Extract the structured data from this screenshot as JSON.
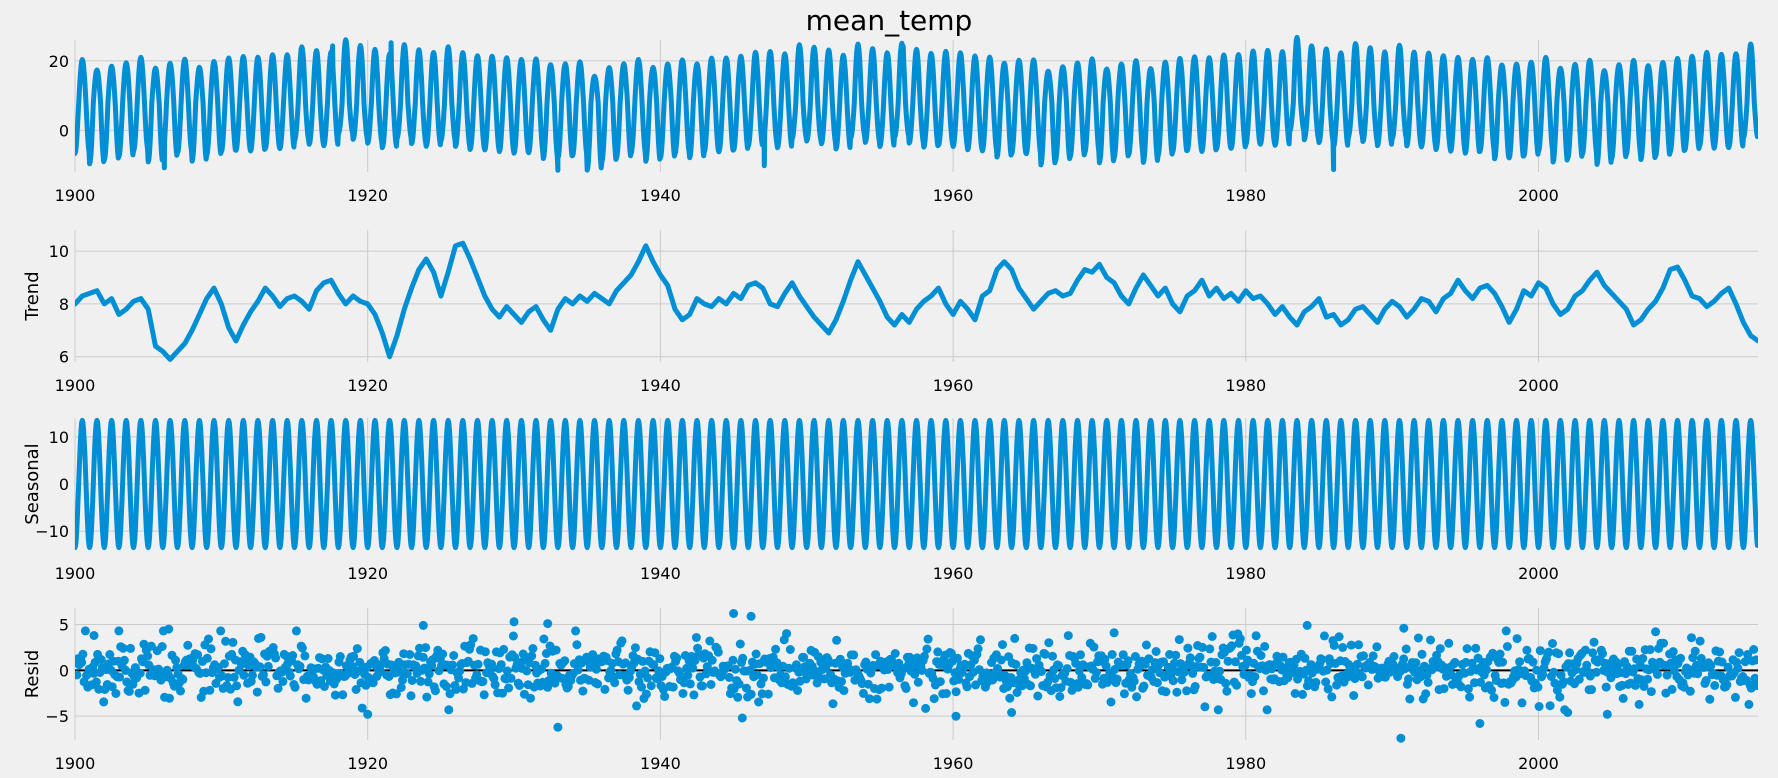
{
  "chart_data": {
    "type": "line",
    "title": "mean_temp",
    "x_ticks": [
      "1900",
      "1920",
      "1940",
      "1960",
      "1980",
      "2000"
    ],
    "xlim": [
      1900,
      2015
    ],
    "series_color": "#008fd5",
    "baseline_color": "#000000",
    "background": "#f0f0f0",
    "grid": true,
    "panels": [
      {
        "name": "observed",
        "kind": "line",
        "ylabel": "",
        "ylim": [
          -12,
          26
        ],
        "y_ticks": [
          0,
          20
        ],
        "model": {
          "mean": 7.8,
          "amplitude": 13.5,
          "period_years": 1,
          "noise": 2.2
        },
        "extremes": [
          {
            "x": 1921.6,
            "y": 25.2
          },
          {
            "x": 1917.6,
            "y": 24.3
          },
          {
            "x": 1906.1,
            "y": -10.8
          },
          {
            "x": 1933.0,
            "y": -11.5
          },
          {
            "x": 1947.1,
            "y": -10.2
          },
          {
            "x": 1986.0,
            "y": -11.3
          },
          {
            "x": 1956.6,
            "y": 24.0
          }
        ]
      },
      {
        "name": "trend",
        "kind": "line",
        "ylabel": "Trend",
        "ylim": [
          5.8,
          10.8
        ],
        "y_ticks": [
          6,
          8,
          10
        ],
        "points": [
          [
            1900,
            8.0
          ],
          [
            1900.5,
            8.3
          ],
          [
            1901,
            8.4
          ],
          [
            1901.5,
            8.5
          ],
          [
            1902,
            8.0
          ],
          [
            1902.5,
            8.2
          ],
          [
            1903,
            7.6
          ],
          [
            1903.5,
            7.8
          ],
          [
            1904,
            8.1
          ],
          [
            1904.5,
            8.2
          ],
          [
            1905,
            7.8
          ],
          [
            1905.5,
            6.4
          ],
          [
            1906,
            6.2
          ],
          [
            1906.5,
            5.9
          ],
          [
            1907,
            6.2
          ],
          [
            1907.5,
            6.5
          ],
          [
            1908,
            7.0
          ],
          [
            1908.5,
            7.6
          ],
          [
            1909,
            8.2
          ],
          [
            1909.5,
            8.6
          ],
          [
            1910,
            8.0
          ],
          [
            1910.5,
            7.1
          ],
          [
            1911,
            6.6
          ],
          [
            1911.5,
            7.2
          ],
          [
            1912,
            7.7
          ],
          [
            1912.5,
            8.1
          ],
          [
            1913,
            8.6
          ],
          [
            1913.5,
            8.3
          ],
          [
            1914,
            7.9
          ],
          [
            1914.5,
            8.2
          ],
          [
            1915,
            8.3
          ],
          [
            1915.5,
            8.1
          ],
          [
            1916,
            7.8
          ],
          [
            1916.5,
            8.5
          ],
          [
            1917,
            8.8
          ],
          [
            1917.5,
            8.9
          ],
          [
            1918,
            8.4
          ],
          [
            1918.5,
            8.0
          ],
          [
            1919,
            8.3
          ],
          [
            1919.5,
            8.1
          ],
          [
            1920,
            8.0
          ],
          [
            1920.5,
            7.6
          ],
          [
            1921,
            6.9
          ],
          [
            1921.5,
            6.0
          ],
          [
            1922,
            6.8
          ],
          [
            1922.5,
            7.8
          ],
          [
            1923,
            8.6
          ],
          [
            1923.5,
            9.3
          ],
          [
            1924,
            9.7
          ],
          [
            1924.5,
            9.2
          ],
          [
            1925,
            8.3
          ],
          [
            1925.5,
            9.2
          ],
          [
            1926,
            10.2
          ],
          [
            1926.5,
            10.3
          ],
          [
            1927,
            9.7
          ],
          [
            1927.5,
            9.0
          ],
          [
            1928,
            8.3
          ],
          [
            1928.5,
            7.8
          ],
          [
            1929,
            7.5
          ],
          [
            1929.5,
            7.9
          ],
          [
            1930,
            7.6
          ],
          [
            1930.5,
            7.3
          ],
          [
            1931,
            7.7
          ],
          [
            1931.5,
            7.9
          ],
          [
            1932,
            7.4
          ],
          [
            1932.5,
            7.0
          ],
          [
            1933,
            7.8
          ],
          [
            1933.5,
            8.2
          ],
          [
            1934,
            8.0
          ],
          [
            1934.5,
            8.3
          ],
          [
            1935,
            8.1
          ],
          [
            1935.5,
            8.4
          ],
          [
            1936,
            8.2
          ],
          [
            1936.5,
            8.0
          ],
          [
            1937,
            8.5
          ],
          [
            1937.5,
            8.8
          ],
          [
            1938,
            9.1
          ],
          [
            1938.5,
            9.6
          ],
          [
            1939,
            10.2
          ],
          [
            1939.5,
            9.6
          ],
          [
            1940,
            9.1
          ],
          [
            1940.5,
            8.7
          ],
          [
            1941,
            7.8
          ],
          [
            1941.5,
            7.4
          ],
          [
            1942,
            7.6
          ],
          [
            1942.5,
            8.2
          ],
          [
            1943,
            8.0
          ],
          [
            1943.5,
            7.9
          ],
          [
            1944,
            8.2
          ],
          [
            1944.5,
            8.0
          ],
          [
            1945,
            8.4
          ],
          [
            1945.5,
            8.2
          ],
          [
            1946,
            8.7
          ],
          [
            1946.5,
            8.8
          ],
          [
            1947,
            8.6
          ],
          [
            1947.5,
            8.0
          ],
          [
            1948,
            7.9
          ],
          [
            1948.5,
            8.4
          ],
          [
            1949,
            8.8
          ],
          [
            1949.5,
            8.3
          ],
          [
            1950,
            7.9
          ],
          [
            1950.5,
            7.5
          ],
          [
            1951,
            7.2
          ],
          [
            1951.5,
            6.9
          ],
          [
            1952,
            7.4
          ],
          [
            1952.5,
            8.1
          ],
          [
            1953,
            8.9
          ],
          [
            1953.5,
            9.6
          ],
          [
            1954,
            9.1
          ],
          [
            1954.5,
            8.6
          ],
          [
            1955,
            8.1
          ],
          [
            1955.5,
            7.5
          ],
          [
            1956,
            7.2
          ],
          [
            1956.5,
            7.6
          ],
          [
            1957,
            7.3
          ],
          [
            1957.5,
            7.8
          ],
          [
            1958,
            8.1
          ],
          [
            1958.5,
            8.3
          ],
          [
            1959,
            8.6
          ],
          [
            1959.5,
            8.0
          ],
          [
            1960,
            7.6
          ],
          [
            1960.5,
            8.1
          ],
          [
            1961,
            7.8
          ],
          [
            1961.5,
            7.4
          ],
          [
            1962,
            8.3
          ],
          [
            1962.5,
            8.5
          ],
          [
            1963,
            9.3
          ],
          [
            1963.5,
            9.6
          ],
          [
            1964,
            9.3
          ],
          [
            1964.5,
            8.6
          ],
          [
            1965,
            8.2
          ],
          [
            1965.5,
            7.8
          ],
          [
            1966,
            8.1
          ],
          [
            1966.5,
            8.4
          ],
          [
            1967,
            8.5
          ],
          [
            1967.5,
            8.3
          ],
          [
            1968,
            8.4
          ],
          [
            1968.5,
            8.9
          ],
          [
            1969,
            9.3
          ],
          [
            1969.5,
            9.2
          ],
          [
            1970,
            9.5
          ],
          [
            1970.5,
            9.0
          ],
          [
            1971,
            8.8
          ],
          [
            1971.5,
            8.3
          ],
          [
            1972,
            8.0
          ],
          [
            1972.5,
            8.6
          ],
          [
            1973,
            9.1
          ],
          [
            1973.5,
            8.7
          ],
          [
            1974,
            8.3
          ],
          [
            1974.5,
            8.6
          ],
          [
            1975,
            8.0
          ],
          [
            1975.5,
            7.7
          ],
          [
            1976,
            8.3
          ],
          [
            1976.5,
            8.5
          ],
          [
            1977,
            8.9
          ],
          [
            1977.5,
            8.3
          ],
          [
            1978,
            8.6
          ],
          [
            1978.5,
            8.2
          ],
          [
            1979,
            8.4
          ],
          [
            1979.5,
            8.1
          ],
          [
            1980,
            8.5
          ],
          [
            1980.5,
            8.2
          ],
          [
            1981,
            8.3
          ],
          [
            1981.5,
            8.0
          ],
          [
            1982,
            7.6
          ],
          [
            1982.5,
            7.9
          ],
          [
            1983,
            7.5
          ],
          [
            1983.5,
            7.2
          ],
          [
            1984,
            7.7
          ],
          [
            1984.5,
            7.9
          ],
          [
            1985,
            8.2
          ],
          [
            1985.5,
            7.5
          ],
          [
            1986,
            7.6
          ],
          [
            1986.5,
            7.2
          ],
          [
            1987,
            7.4
          ],
          [
            1987.5,
            7.8
          ],
          [
            1988,
            7.9
          ],
          [
            1988.5,
            7.6
          ],
          [
            1989,
            7.3
          ],
          [
            1989.5,
            7.8
          ],
          [
            1990,
            8.1
          ],
          [
            1990.5,
            7.9
          ],
          [
            1991,
            7.5
          ],
          [
            1991.5,
            7.8
          ],
          [
            1992,
            8.2
          ],
          [
            1992.5,
            8.1
          ],
          [
            1993,
            7.7
          ],
          [
            1993.5,
            8.2
          ],
          [
            1994,
            8.4
          ],
          [
            1994.5,
            8.9
          ],
          [
            1995,
            8.5
          ],
          [
            1995.5,
            8.2
          ],
          [
            1996,
            8.6
          ],
          [
            1996.5,
            8.7
          ],
          [
            1997,
            8.4
          ],
          [
            1997.5,
            7.9
          ],
          [
            1998,
            7.3
          ],
          [
            1998.5,
            7.8
          ],
          [
            1999,
            8.5
          ],
          [
            1999.5,
            8.3
          ],
          [
            2000,
            8.8
          ],
          [
            2000.5,
            8.6
          ],
          [
            2001,
            8.0
          ],
          [
            2001.5,
            7.6
          ],
          [
            2002,
            7.8
          ],
          [
            2002.5,
            8.3
          ],
          [
            2003,
            8.5
          ],
          [
            2003.5,
            8.9
          ],
          [
            2004,
            9.2
          ],
          [
            2004.5,
            8.7
          ],
          [
            2005,
            8.4
          ],
          [
            2005.5,
            8.1
          ],
          [
            2006,
            7.8
          ],
          [
            2006.5,
            7.2
          ],
          [
            2007,
            7.4
          ],
          [
            2007.5,
            7.8
          ],
          [
            2008,
            8.1
          ],
          [
            2008.5,
            8.6
          ],
          [
            2009,
            9.3
          ],
          [
            2009.5,
            9.4
          ],
          [
            2010,
            8.9
          ],
          [
            2010.5,
            8.3
          ],
          [
            2011,
            8.2
          ],
          [
            2011.5,
            7.9
          ],
          [
            2012,
            8.1
          ],
          [
            2012.5,
            8.4
          ],
          [
            2013,
            8.6
          ],
          [
            2013.5,
            8.0
          ],
          [
            2014,
            7.3
          ],
          [
            2014.5,
            6.8
          ],
          [
            2015,
            6.6
          ]
        ]
      },
      {
        "name": "seasonal",
        "kind": "line",
        "ylabel": "Seasonal",
        "ylim": [
          -14,
          14
        ],
        "y_ticks": [
          -10,
          0,
          10
        ],
        "model": {
          "amplitude": 13.5,
          "period_years": 1
        }
      },
      {
        "name": "resid",
        "kind": "scatter",
        "ylabel": "Resid",
        "ylim": [
          -7.6,
          6.8
        ],
        "y_ticks": [
          -5,
          0,
          5
        ],
        "baseline": 0,
        "model": {
          "spread": 1.5,
          "points_per_year": 12
        },
        "outliers": [
          [
            1901.3,
            3.8
          ],
          [
            1903.0,
            4.3
          ],
          [
            1906.4,
            4.5
          ],
          [
            1920.0,
            -4.8
          ],
          [
            1923.8,
            4.9
          ],
          [
            1930.0,
            5.3
          ],
          [
            1932.3,
            5.1
          ],
          [
            1933.0,
            -6.2
          ],
          [
            1945.0,
            6.2
          ],
          [
            1946.2,
            5.9
          ],
          [
            1945.6,
            -5.2
          ],
          [
            1960.2,
            -5.0
          ],
          [
            1964.0,
            -4.6
          ],
          [
            1971.0,
            4.1
          ],
          [
            1984.2,
            4.9
          ],
          [
            1990.8,
            4.6
          ],
          [
            1990.6,
            -7.4
          ],
          [
            1996.0,
            -5.8
          ],
          [
            2002.0,
            -4.6
          ],
          [
            2004.7,
            -4.8
          ],
          [
            2008.0,
            4.2
          ]
        ]
      }
    ]
  }
}
